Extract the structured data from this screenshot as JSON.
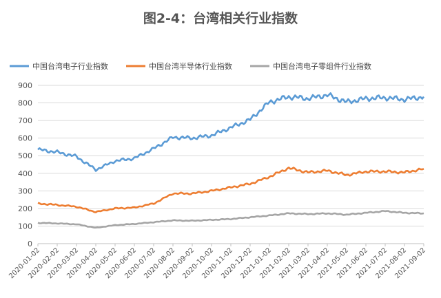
{
  "title": "图2-4：台湾相关行业指数",
  "chart_data": {
    "type": "line",
    "title": "图2-4：台湾相关行业指数",
    "xlabel": "",
    "ylabel": "",
    "ylim": [
      0,
      900
    ],
    "yticks": [
      0,
      100,
      200,
      300,
      400,
      500,
      600,
      700,
      800,
      900
    ],
    "grid": true,
    "legend_position": "top",
    "x": [
      "2020-01-02",
      "2020-02-02",
      "2020-03-02",
      "2020-04-02",
      "2020-05-02",
      "2020-06-02",
      "2020-07-02",
      "2020-08-02",
      "2020-09-02",
      "2020-10-02",
      "2020-11-02",
      "2020-12-02",
      "2021-01-02",
      "2021-02-02",
      "2021-03-02",
      "2021-04-02",
      "2021-05-02",
      "2021-06-02",
      "2021-07-02",
      "2021-08-02",
      "2021-09-02"
    ],
    "series": [
      {
        "name": "中国台湾电子行业指数",
        "color": "#5B9BD5",
        "values": [
          535,
          520,
          495,
          420,
          470,
          485,
          540,
          605,
          600,
          615,
          660,
          705,
          805,
          835,
          825,
          845,
          805,
          825,
          830,
          820,
          835
        ]
      },
      {
        "name": "中国台湾半导体行业指数",
        "color": "#ED7D31",
        "values": [
          228,
          220,
          210,
          180,
          200,
          205,
          228,
          285,
          285,
          300,
          320,
          340,
          380,
          430,
          405,
          415,
          390,
          410,
          410,
          405,
          425
        ]
      },
      {
        "name": "中国台湾电子零组件行业指数",
        "color": "#A5A5A5",
        "values": [
          118,
          115,
          110,
          90,
          105,
          112,
          122,
          132,
          130,
          135,
          140,
          150,
          160,
          172,
          168,
          172,
          165,
          175,
          185,
          175,
          172
        ]
      }
    ]
  }
}
